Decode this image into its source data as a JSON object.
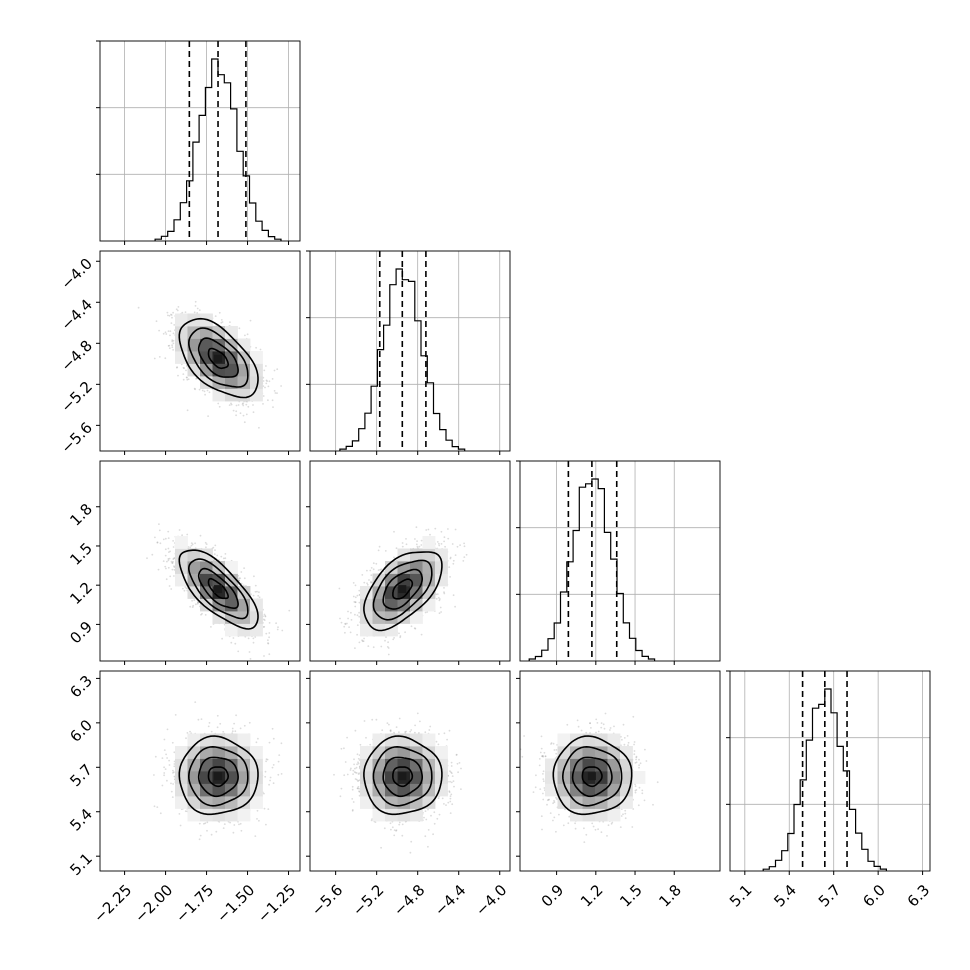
{
  "chart_data": {
    "type": "corner",
    "title": "",
    "n_params": 4,
    "grid": true,
    "colors": {
      "line": "#000000",
      "grid": "#b0b0b0",
      "points": "#9a9a9a",
      "density_max": "#1a1a1a"
    },
    "params": [
      {
        "index": 0,
        "range": [
          -2.4,
          -1.18
        ],
        "ticks": [
          -2.25,
          -2.0,
          -1.75,
          -1.5,
          -1.25
        ],
        "tick_labels": [
          "−2.25",
          "−2.00",
          "−1.75",
          "−1.50",
          "−1.25"
        ],
        "mean": -1.68,
        "sigma": 0.12,
        "quantiles": [
          -1.855,
          -1.68,
          -1.51
        ]
      },
      {
        "index": 1,
        "range": [
          -5.85,
          -3.9
        ],
        "ticks": [
          -5.6,
          -5.2,
          -4.8,
          -4.4,
          -4.0
        ],
        "tick_labels": [
          "−5.6",
          "−5.2",
          "−4.8",
          "−4.4",
          "−4.0"
        ],
        "mean": -4.95,
        "sigma": 0.19,
        "quantiles": [
          -5.17,
          -4.95,
          -4.72
        ]
      },
      {
        "index": 2,
        "range": [
          0.62,
          2.15
        ],
        "ticks": [
          0.9,
          1.2,
          1.5,
          1.8
        ],
        "tick_labels": [
          "0.9",
          "1.2",
          "1.5",
          "1.8"
        ],
        "mean": 1.17,
        "sigma": 0.15,
        "quantiles": [
          0.99,
          1.17,
          1.36
        ]
      },
      {
        "index": 3,
        "range": [
          5.0,
          6.35
        ],
        "ticks": [
          5.1,
          5.4,
          5.7,
          6.0,
          6.3
        ],
        "tick_labels": [
          "5.1",
          "5.4",
          "5.7",
          "6.0",
          "6.3"
        ],
        "mean": 5.64,
        "sigma": 0.13,
        "quantiles": [
          5.49,
          5.64,
          5.79
        ]
      }
    ],
    "correlations": [
      {
        "pair": [
          0,
          1
        ],
        "rho": -0.55
      },
      {
        "pair": [
          0,
          2
        ],
        "rho": -0.72
      },
      {
        "pair": [
          1,
          2
        ],
        "rho": 0.55
      },
      {
        "pair": [
          0,
          3
        ],
        "rho": 0.0
      },
      {
        "pair": [
          1,
          3
        ],
        "rho": 0.0
      },
      {
        "pair": [
          2,
          3
        ],
        "rho": 0.0
      }
    ],
    "contour_levels_sigma": [
      0.5,
      1.0,
      1.5,
      2.0
    ],
    "histogram_bins": 20,
    "scatter_points_per_panel": 2200
  }
}
